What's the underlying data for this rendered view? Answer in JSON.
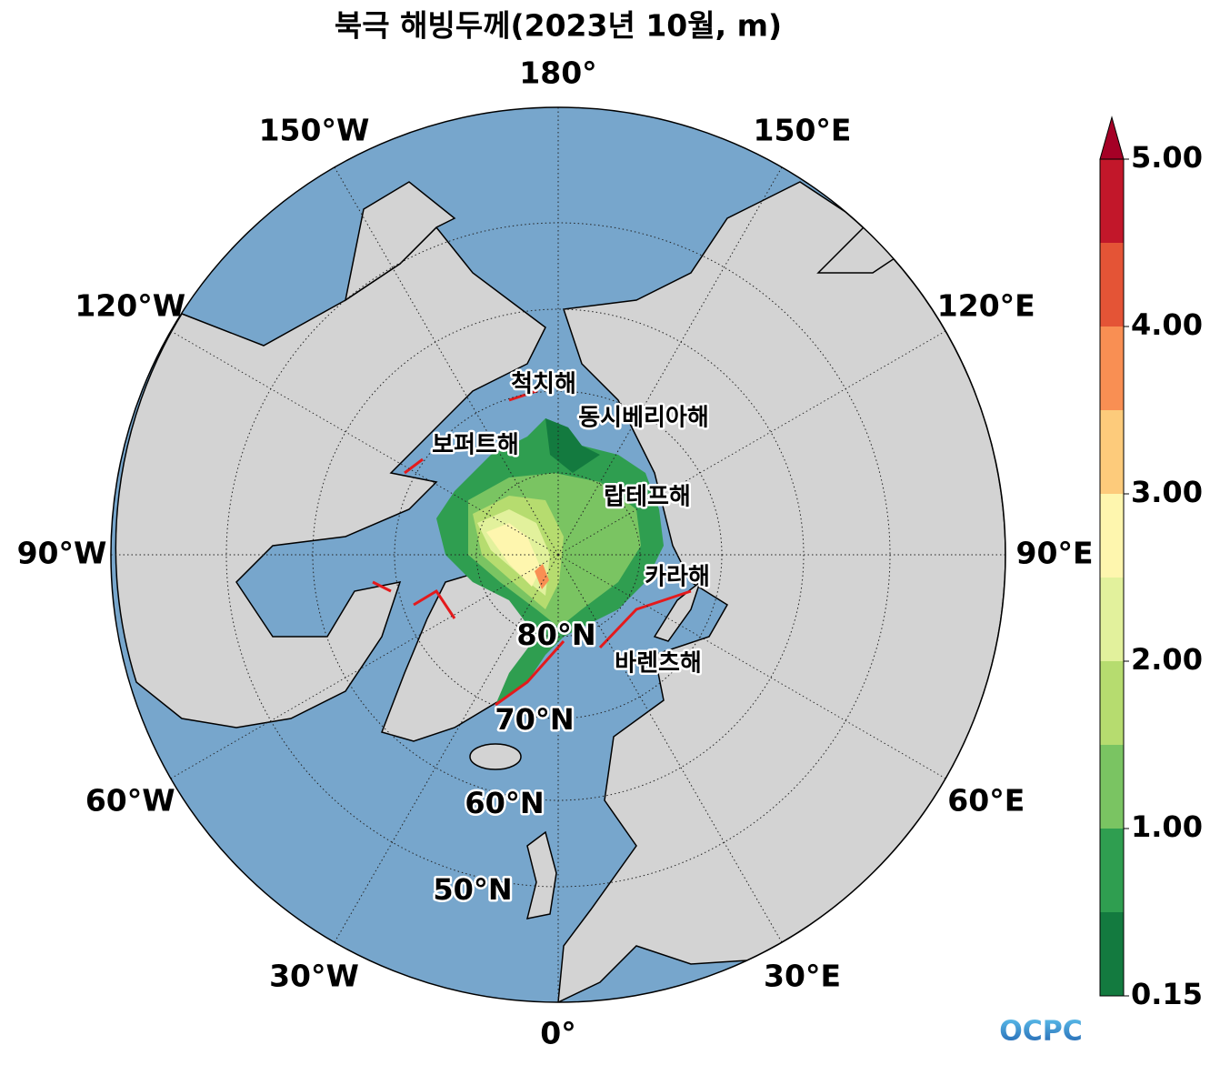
{
  "map": {
    "title": "북극 해빙두께(2023년 10월, m)",
    "longitude_labels": [
      "180°",
      "150°E",
      "120°E",
      "90°E",
      "60°E",
      "30°E",
      "0°",
      "30°W",
      "60°W",
      "90°W",
      "120°W",
      "150°W"
    ],
    "latitude_labels": [
      "80°N",
      "70°N",
      "60°N",
      "50°N"
    ],
    "sea_names": [
      "척치해",
      "동시베리아해",
      "보퍼트해",
      "랍테프해",
      "카라해",
      "바렌츠해"
    ],
    "colorbar": {
      "levels": [
        0.15,
        0.5,
        1,
        1.5,
        2,
        2.5,
        3,
        3.5,
        4,
        4.5,
        5
      ],
      "colors": [
        "#137a3f",
        "#2f9e50",
        "#7ac462",
        "#b6dc6f",
        "#e2f19c",
        "#fef6ae",
        "#fdcb7b",
        "#f98f53",
        "#e45436",
        "#c2172a"
      ],
      "extend_color": "#a50026",
      "ticks": [
        0.15,
        {
          "value": 1,
          "label": "1.00"
        },
        {
          "value": 2,
          "label": "2.00"
        },
        {
          "value": 3,
          "label": "3.00"
        },
        {
          "value": 4,
          "label": "4.00"
        },
        {
          "value": 5,
          "label": "5.00"
        }
      ]
    },
    "logo": "OCPC"
  }
}
